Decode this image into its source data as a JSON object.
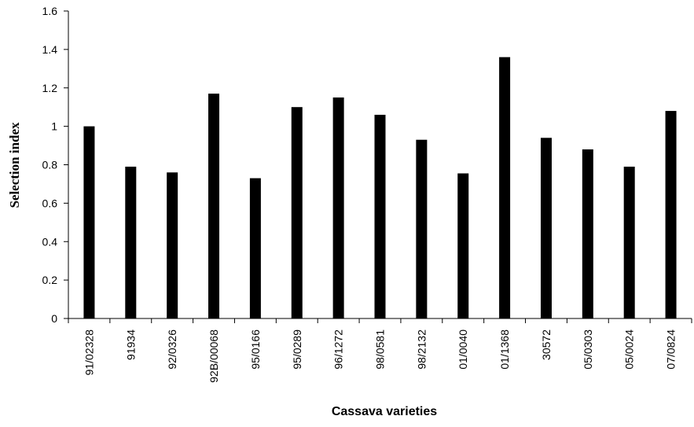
{
  "chart_data": {
    "type": "bar",
    "title": "",
    "xlabel": "Cassava varieties",
    "ylabel": "Selection index",
    "ylim": [
      0,
      1.6
    ],
    "yticks": [
      "0",
      "0.2",
      "0.4",
      "0.6",
      "0.8",
      "1",
      "1.2",
      "1.4",
      "1.6"
    ],
    "grid": false,
    "bar_color": "#000000",
    "categories": [
      "91/02328",
      "91934",
      "92/0326",
      "92B/00068",
      "95/0166",
      "95/0289",
      "96/1272",
      "98/0581",
      "98/2132",
      "01/0040",
      "01/1368",
      "30572",
      "05/0303",
      "05/0024",
      "07/0824"
    ],
    "values": [
      1.0,
      0.79,
      0.76,
      1.17,
      0.73,
      1.1,
      1.15,
      1.06,
      0.93,
      0.755,
      1.36,
      0.94,
      0.88,
      0.79,
      1.08
    ]
  }
}
